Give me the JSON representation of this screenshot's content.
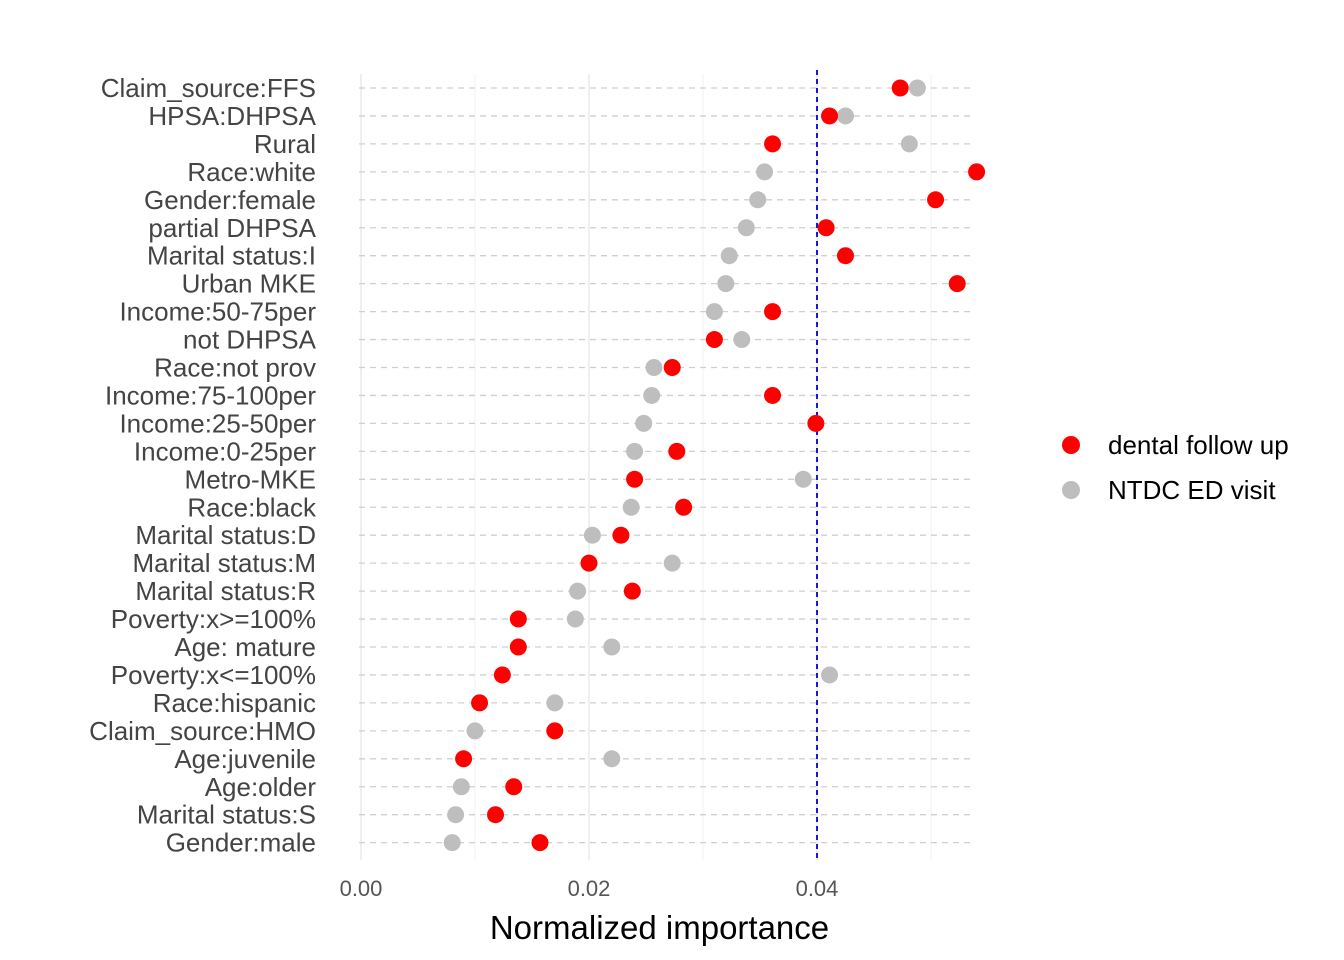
{
  "chart_data": {
    "type": "scatter",
    "xlabel": "Normalized importance",
    "ylabel": "",
    "xlim": [
      -0.0003,
      0.0545
    ],
    "xticks": [
      0.0,
      0.02,
      0.04
    ],
    "xtick_labels": [
      "0.00",
      "0.02",
      "0.04"
    ],
    "reference_line": {
      "x": 0.04,
      "color": "#0000cc",
      "style": "dashed"
    },
    "grid": true,
    "legend_position": "right",
    "categories": [
      "Claim_source:FFS",
      "HPSA:DHPSA",
      "Rural",
      "Race:white",
      "Gender:female",
      "partial DHPSA",
      "Marital status:I",
      "Urban MKE",
      "Income:50-75per",
      "not DHPSA",
      "Race:not prov",
      "Income:75-100per",
      "Income:25-50per",
      "Income:0-25per",
      "Metro-MKE",
      "Race:black",
      "Marital status:D",
      "Marital status:M",
      "Marital status:R",
      "Poverty:x>=100%",
      "Age: mature",
      "Poverty:x<=100%",
      "Race:hispanic",
      "Claim_source:HMO",
      "Age:juvenile",
      "Age:older",
      "Marital status:S",
      "Gender:male"
    ],
    "series": [
      {
        "name": "dental follow up",
        "color": "#ff0000",
        "values": [
          0.0473,
          0.0411,
          0.0361,
          0.054,
          0.0504,
          0.0408,
          0.0425,
          0.0523,
          0.0361,
          0.031,
          0.0273,
          0.0361,
          0.0399,
          0.0277,
          0.024,
          0.0283,
          0.0228,
          0.02,
          0.0238,
          0.0138,
          0.0138,
          0.0124,
          0.0104,
          0.017,
          0.009,
          0.0134,
          0.0118,
          0.0157
        ]
      },
      {
        "name": "NTDC ED visit",
        "color": "#bebebe",
        "values": [
          0.0488,
          0.0425,
          0.0481,
          0.0354,
          0.0348,
          0.0338,
          0.0323,
          0.032,
          0.031,
          0.0334,
          0.0257,
          0.0255,
          0.0248,
          0.024,
          0.0388,
          0.0237,
          0.0203,
          0.0273,
          0.019,
          0.0188,
          0.022,
          0.0411,
          0.017,
          0.01,
          0.022,
          0.0088,
          0.0083,
          0.008
        ]
      }
    ]
  }
}
